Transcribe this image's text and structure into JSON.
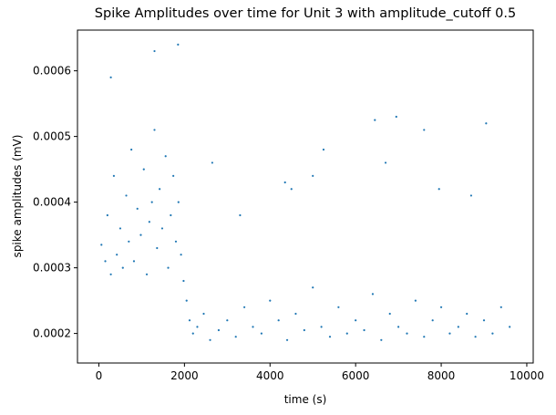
{
  "chart_data": {
    "type": "scatter",
    "title": "Spike Amplitudes over time for Unit 3 with amplitude_cutoff 0.5",
    "xlabel": "time (s)",
    "ylabel": "spike amplitudes (mV)",
    "xlim": [
      -500,
      10150
    ],
    "ylim": [
      0.000155,
      0.000662
    ],
    "xticks": [
      0,
      2000,
      4000,
      6000,
      8000,
      10000
    ],
    "xtick_labels": [
      "0",
      "2000",
      "4000",
      "6000",
      "8000",
      "10000"
    ],
    "yticks": [
      0.0002,
      0.0003,
      0.0004,
      0.0005,
      0.0006
    ],
    "ytick_labels": [
      "0.0002",
      "0.0003",
      "0.0004",
      "0.0005",
      "0.0006"
    ],
    "grid": false,
    "marker_color": "#1f77b4",
    "series": [
      {
        "name": "",
        "x": [
          60,
          150,
          200,
          280,
          350,
          420,
          500,
          560,
          640,
          700,
          760,
          820,
          900,
          980,
          1050,
          1120,
          1180,
          1240,
          1300,
          1360,
          1420,
          1480,
          1560,
          1620,
          1680,
          1740,
          1800,
          1860,
          1920,
          1980,
          2050,
          2120,
          2200,
          2300,
          2450,
          2600,
          2800,
          3000,
          3200,
          3400,
          3600,
          3800,
          4000,
          4200,
          4400,
          4600,
          4800,
          5000,
          5200,
          5400,
          5600,
          5800,
          6000,
          6200,
          6400,
          6600,
          6800,
          7000,
          7200,
          7400,
          7600,
          7800,
          8000,
          8200,
          8400,
          8600,
          8800,
          9000,
          9200,
          9400,
          9600,
          1300,
          1850,
          280,
          6950,
          6450,
          7600,
          9050,
          5250,
          6700,
          5000,
          4500,
          3300,
          2650,
          4350,
          7950,
          8700
        ],
        "y": [
          0.000335,
          0.00031,
          0.00038,
          0.00029,
          0.00044,
          0.00032,
          0.00036,
          0.0003,
          0.00041,
          0.00034,
          0.00048,
          0.00031,
          0.00039,
          0.00035,
          0.00045,
          0.00029,
          0.00037,
          0.0004,
          0.00051,
          0.00033,
          0.00042,
          0.00036,
          0.00047,
          0.0003,
          0.00038,
          0.00044,
          0.00034,
          0.0004,
          0.00032,
          0.00028,
          0.00025,
          0.00022,
          0.0002,
          0.00021,
          0.00023,
          0.00019,
          0.000205,
          0.00022,
          0.000195,
          0.00024,
          0.00021,
          0.0002,
          0.00025,
          0.00022,
          0.00019,
          0.00023,
          0.000205,
          0.00027,
          0.00021,
          0.000195,
          0.00024,
          0.0002,
          0.00022,
          0.000205,
          0.00026,
          0.00019,
          0.00023,
          0.00021,
          0.0002,
          0.00025,
          0.000195,
          0.00022,
          0.00024,
          0.0002,
          0.00021,
          0.00023,
          0.000195,
          0.00022,
          0.0002,
          0.00024,
          0.00021,
          0.00063,
          0.00064,
          0.00059,
          0.00053,
          0.000525,
          0.00051,
          0.00052,
          0.00048,
          0.00046,
          0.00044,
          0.00042,
          0.00038,
          0.00046,
          0.00043,
          0.00042,
          0.00041
        ]
      }
    ]
  }
}
